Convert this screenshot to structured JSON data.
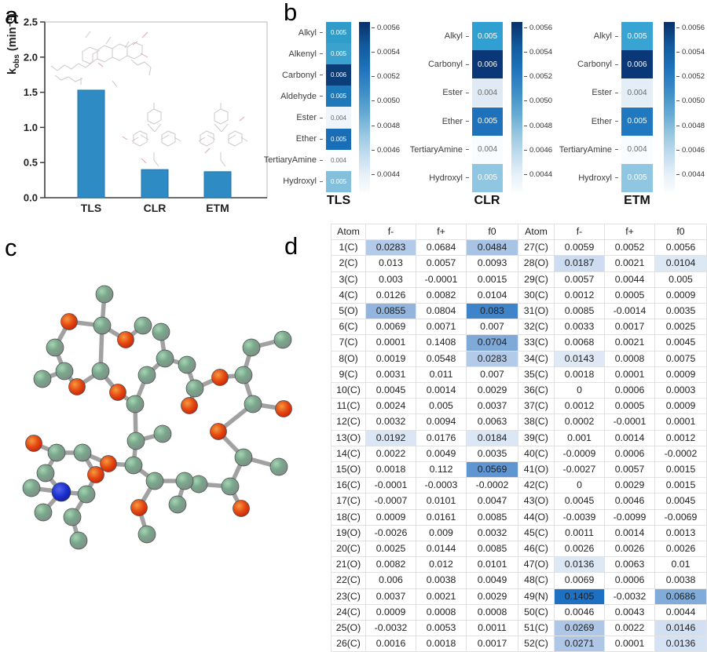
{
  "panel_labels": {
    "a": "a",
    "b": "b",
    "c": "c",
    "d": "d"
  },
  "chart_data": [
    {
      "type": "bar",
      "title": "",
      "categories": [
        "TLS",
        "CLR",
        "ETM"
      ],
      "values": [
        1.53,
        0.4,
        0.37
      ],
      "ylabel_base": "k",
      "ylabel_sub": "obs",
      "ylabel_unit": " (min⁻¹)",
      "ylim": [
        0,
        2.5
      ],
      "yticks": [
        "0.0",
        "0.5",
        "1.0",
        "1.5",
        "2.0",
        "2.5"
      ],
      "bar_color": "#2e8bc3",
      "legend_position": "none",
      "grid": false
    },
    {
      "type": "heatmap",
      "title": "TLS",
      "categories": [
        "Alkyl",
        "Alkenyl",
        "Carbonyl",
        "Aldehyde",
        "Ester",
        "Ether",
        "TertiaryAmine",
        "Hydroxyl"
      ],
      "values": [
        "0.005",
        "0.005",
        "0.006",
        "0.005",
        "0.004",
        "0.005",
        "0.004",
        "0.005"
      ],
      "cell_colors": [
        "#309cca",
        "#3ba1ce",
        "#0b3e79",
        "#1d79ba",
        "#eff5fa",
        "#1a6eb7",
        "#fbfdfe",
        "#82c0dd"
      ],
      "text_colors": [
        "#ffffff",
        "#ffffff",
        "#ffffff",
        "#ffffff",
        "#6b6b6b",
        "#ffffff",
        "#6b6b6b",
        "#ffffff"
      ],
      "colorbar_ticks": [
        "0.0056",
        "0.0054",
        "0.0052",
        "0.0050",
        "0.0048",
        "0.0046",
        "0.0044"
      ]
    },
    {
      "type": "heatmap",
      "title": "CLR",
      "categories": [
        "Alkyl",
        "Carbonyl",
        "Ester",
        "Ether",
        "TertiaryAmine",
        "Hydroxyl"
      ],
      "values": [
        "0.005",
        "0.006",
        "0.004",
        "0.005",
        "0.004",
        "0.005"
      ],
      "cell_colors": [
        "#2fa0d1",
        "#0a3778",
        "#dfeaf5",
        "#1d72bb",
        "#f9fcfe",
        "#8fc6e1"
      ],
      "text_colors": [
        "#ffffff",
        "#ffffff",
        "#6b6b6b",
        "#ffffff",
        "#6b6b6b",
        "#ffffff"
      ],
      "colorbar_ticks": [
        "0.0056",
        "0.0054",
        "0.0052",
        "0.0050",
        "0.0048",
        "0.0046",
        "0.0044"
      ]
    },
    {
      "type": "heatmap",
      "title": "ETM",
      "categories": [
        "Alkyl",
        "Carbonyl",
        "Ester",
        "Ether",
        "TertiaryAmine",
        "Hydroxyl"
      ],
      "values": [
        "0.005",
        "0.006",
        "0.004",
        "0.005",
        "0.004",
        "0.005"
      ],
      "cell_colors": [
        "#37a4d3",
        "#0a3778",
        "#e3eef7",
        "#2078c0",
        "#f9fcfe",
        "#8fc6e1"
      ],
      "text_colors": [
        "#ffffff",
        "#ffffff",
        "#6b6b6b",
        "#ffffff",
        "#6b6b6b",
        "#ffffff"
      ],
      "colorbar_ticks": [
        "0.0056",
        "0.0054",
        "0.0052",
        "0.0050",
        "0.0048",
        "0.0046",
        "0.0044"
      ]
    },
    {
      "type": "table",
      "columns": [
        "Atom",
        "f-",
        "f+",
        "f0",
        "Atom",
        "f-",
        "f+",
        "f0"
      ],
      "rows": [
        [
          "1(C)",
          "0.0283",
          "0.0684",
          "0.0484",
          "27(C)",
          "0.0059",
          "0.0052",
          "0.0056"
        ],
        [
          "2(C)",
          "0.013",
          "0.0057",
          "0.0093",
          "28(O)",
          "0.0187",
          "0.0021",
          "0.0104"
        ],
        [
          "3(C)",
          "0.003",
          "-0.0001",
          "0.0015",
          "29(C)",
          "0.0057",
          "0.0044",
          "0.005"
        ],
        [
          "4(C)",
          "0.0126",
          "0.0082",
          "0.0104",
          "30(C)",
          "0.0012",
          "0.0005",
          "0.0009"
        ],
        [
          "5(O)",
          "0.0855",
          "0.0804",
          "0.083",
          "31(O)",
          "0.0085",
          "-0.0014",
          "0.0035"
        ],
        [
          "6(C)",
          "0.0069",
          "0.0071",
          "0.007",
          "32(C)",
          "0.0033",
          "0.0017",
          "0.0025"
        ],
        [
          "7(C)",
          "0.0001",
          "0.1408",
          "0.0704",
          "33(C)",
          "0.0068",
          "0.0021",
          "0.0045"
        ],
        [
          "8(O)",
          "0.0019",
          "0.0548",
          "0.0283",
          "34(C)",
          "0.0143",
          "0.0008",
          "0.0075"
        ],
        [
          "9(C)",
          "0.0031",
          "0.011",
          "0.007",
          "35(C)",
          "0.0018",
          "0.0001",
          "0.0009"
        ],
        [
          "10(C)",
          "0.0045",
          "0.0014",
          "0.0029",
          "36(C)",
          "0",
          "0.0006",
          "0.0003"
        ],
        [
          "11(C)",
          "0.0024",
          "0.005",
          "0.0037",
          "37(C)",
          "0.0012",
          "0.0005",
          "0.0009"
        ],
        [
          "12(C)",
          "0.0032",
          "0.0094",
          "0.0063",
          "38(C)",
          "0.0002",
          "-0.0001",
          "0.0001"
        ],
        [
          "13(O)",
          "0.0192",
          "0.0176",
          "0.0184",
          "39(C)",
          "0.001",
          "0.0014",
          "0.0012"
        ],
        [
          "14(C)",
          "0.0022",
          "0.0049",
          "0.0035",
          "40(C)",
          "-0.0009",
          "0.0006",
          "-0.0002"
        ],
        [
          "15(O)",
          "0.0018",
          "0.112",
          "0.0569",
          "41(O)",
          "-0.0027",
          "0.0057",
          "0.0015"
        ],
        [
          "16(C)",
          "-0.0001",
          "-0.0003",
          "-0.0002",
          "42(C)",
          "0",
          "0.0029",
          "0.0015"
        ],
        [
          "17(C)",
          "-0.0007",
          "0.0101",
          "0.0047",
          "43(O)",
          "0.0045",
          "0.0046",
          "0.0045"
        ],
        [
          "18(C)",
          "0.0009",
          "0.0161",
          "0.0085",
          "44(O)",
          "-0.0039",
          "-0.0099",
          "-0.0069"
        ],
        [
          "19(O)",
          "-0.0026",
          "0.009",
          "0.0032",
          "45(C)",
          "0.0011",
          "0.0014",
          "0.0013"
        ],
        [
          "20(C)",
          "0.0025",
          "0.0144",
          "0.0085",
          "46(C)",
          "0.0026",
          "0.0026",
          "0.0026"
        ],
        [
          "21(O)",
          "0.0082",
          "0.012",
          "0.0101",
          "47(O)",
          "0.0136",
          "0.0063",
          "0.01"
        ],
        [
          "22(C)",
          "0.006",
          "0.0038",
          "0.0049",
          "48(C)",
          "0.0069",
          "0.0006",
          "0.0038"
        ],
        [
          "23(C)",
          "0.0037",
          "0.0021",
          "0.0029",
          "49(N)",
          "0.1405",
          "-0.0032",
          "0.0686"
        ],
        [
          "24(C)",
          "0.0009",
          "0.0008",
          "0.0008",
          "50(C)",
          "0.0046",
          "0.0043",
          "0.0044"
        ],
        [
          "25(O)",
          "-0.0032",
          "0.0053",
          "0.0011",
          "51(C)",
          "0.0269",
          "0.0022",
          "0.0146"
        ],
        [
          "26(C)",
          "0.0016",
          "0.0018",
          "0.0017",
          "52(C)",
          "0.0271",
          "0.0001",
          "0.0136"
        ]
      ],
      "highlights": [
        {
          "r": 0,
          "c": 1,
          "color": "#b3cae8"
        },
        {
          "r": 0,
          "c": 3,
          "color": "#a9c3e4"
        },
        {
          "r": 1,
          "c": 5,
          "color": "#cddcf0"
        },
        {
          "r": 1,
          "c": 7,
          "color": "#dde8f5"
        },
        {
          "r": 4,
          "c": 1,
          "color": "#93b5dd"
        },
        {
          "r": 4,
          "c": 3,
          "color": "#3f83c9"
        },
        {
          "r": 6,
          "c": 3,
          "color": "#7fa9d7"
        },
        {
          "r": 7,
          "c": 3,
          "color": "#b3cae8"
        },
        {
          "r": 7,
          "c": 5,
          "color": "#dfe9f6"
        },
        {
          "r": 12,
          "c": 1,
          "color": "#dae6f4"
        },
        {
          "r": 12,
          "c": 3,
          "color": "#dbe7f4"
        },
        {
          "r": 14,
          "c": 3,
          "color": "#5f95d1"
        },
        {
          "r": 20,
          "c": 5,
          "color": "#dde8f5"
        },
        {
          "r": 22,
          "c": 5,
          "color": "#1e70c2"
        },
        {
          "r": 22,
          "c": 7,
          "color": "#81abd8"
        },
        {
          "r": 24,
          "c": 5,
          "color": "#afc7e6"
        },
        {
          "r": 24,
          "c": 7,
          "color": "#d2e0f2"
        },
        {
          "r": 25,
          "c": 5,
          "color": "#afc7e6"
        },
        {
          "r": 25,
          "c": 7,
          "color": "#d5e2f3"
        }
      ]
    }
  ],
  "molecule": {
    "carbon_color": "#7aa88c",
    "oxygen_color": "#e54a12",
    "nitrogen_color": "#1b2fd0",
    "bond_color": "#9d9d9d"
  }
}
